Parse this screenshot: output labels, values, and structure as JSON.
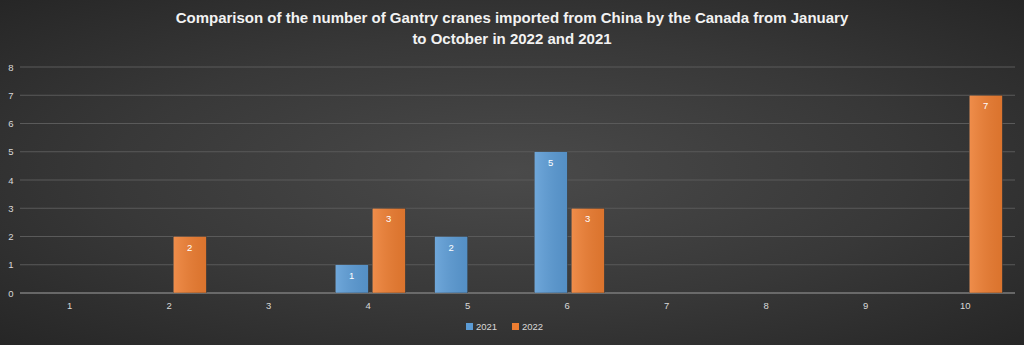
{
  "chart_data": {
    "type": "bar",
    "title": "Comparison of the number of Gantry cranes imported from China by the Canada from January\nto October in 2022 and 2021",
    "categories": [
      "1",
      "2",
      "3",
      "4",
      "5",
      "6",
      "7",
      "8",
      "9",
      "10"
    ],
    "series": [
      {
        "name": "2021",
        "color": "#5b9bd5",
        "values": [
          null,
          null,
          null,
          1,
          2,
          5,
          null,
          null,
          null,
          null
        ]
      },
      {
        "name": "2022",
        "color": "#ed7d31",
        "values": [
          null,
          2,
          null,
          3,
          null,
          3,
          null,
          null,
          null,
          7
        ]
      }
    ],
    "ylim": [
      0,
      8
    ],
    "yticks": [
      0,
      1,
      2,
      3,
      4,
      5,
      6,
      7,
      8
    ],
    "grid": true,
    "legend": "bottom",
    "data_labels": true
  }
}
